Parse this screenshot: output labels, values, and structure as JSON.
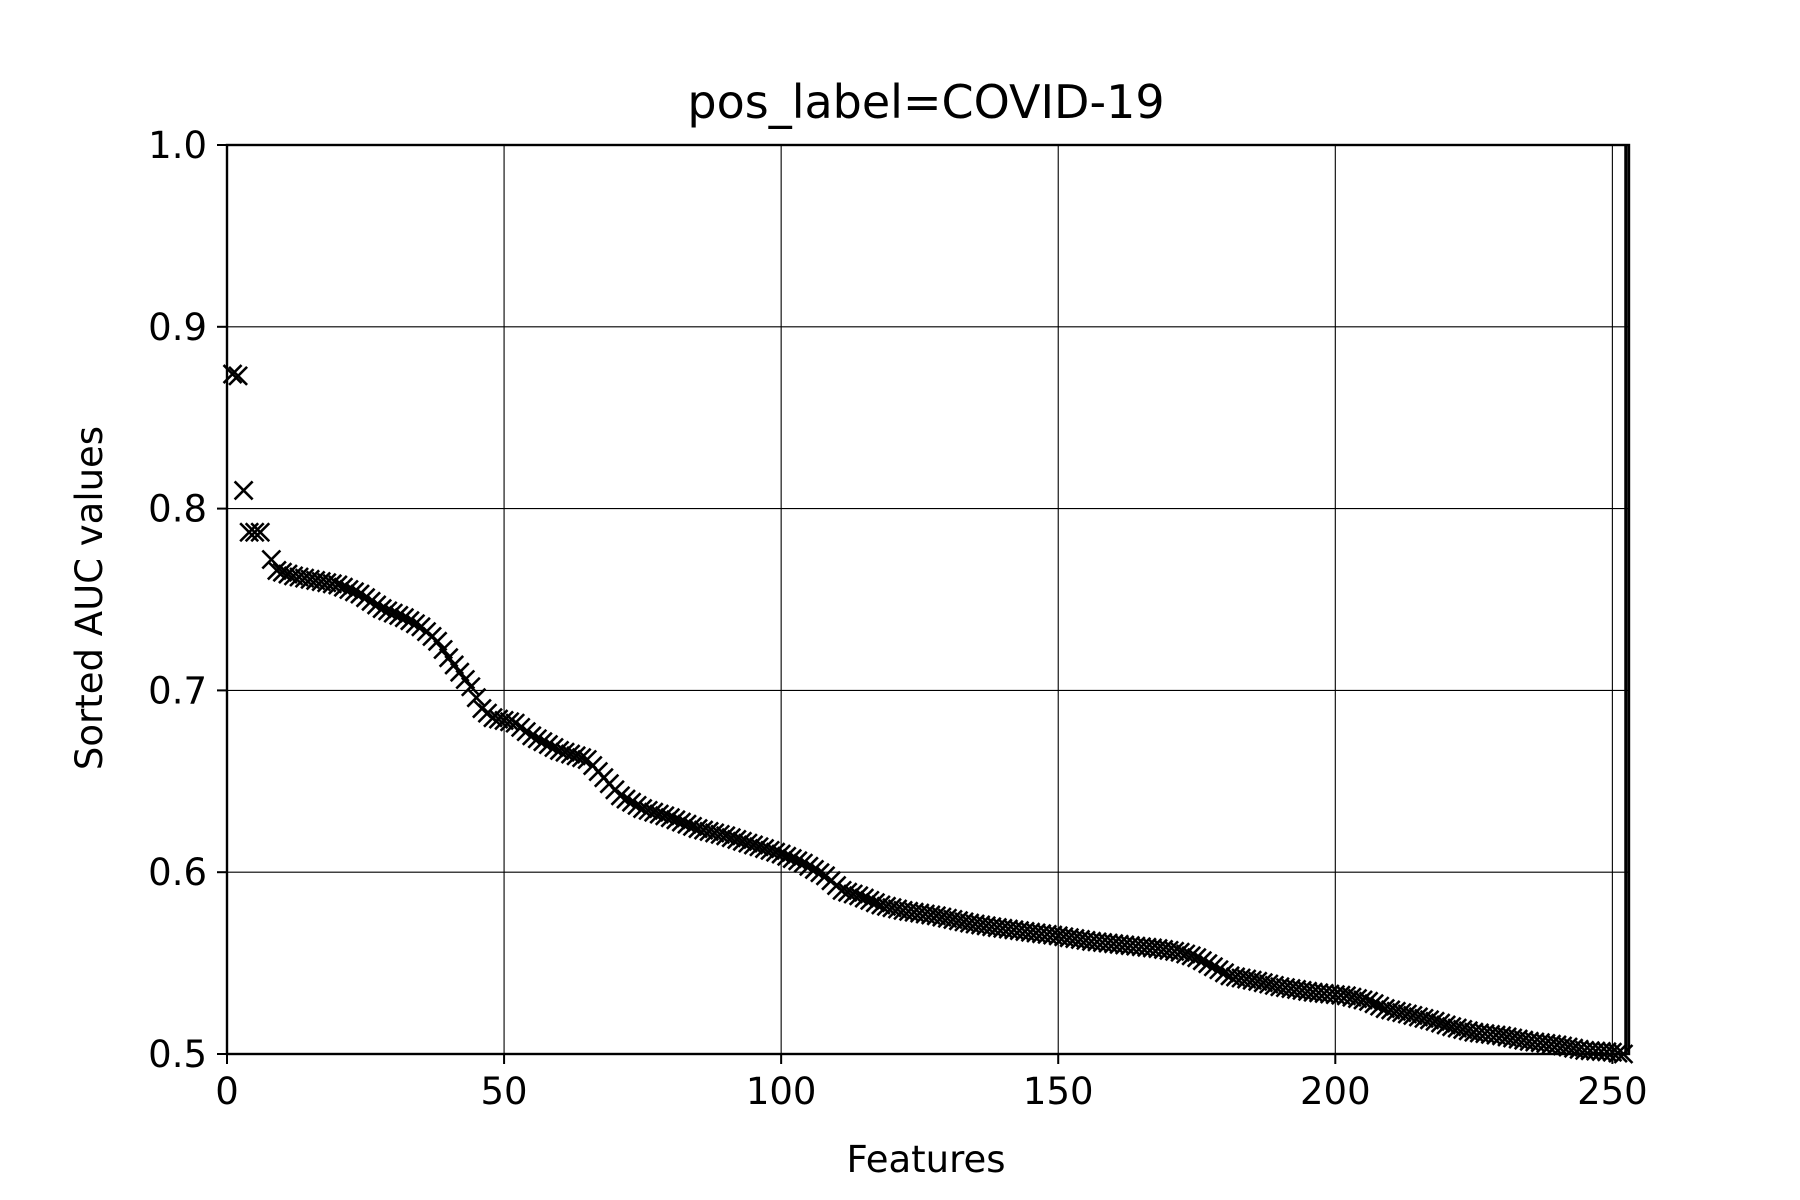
{
  "chart_data": {
    "type": "scatter",
    "title": "pos_label=COVID-19",
    "xlabel": "Features",
    "ylabel": "Sorted AUC values",
    "xlim": [
      0,
      253
    ],
    "ylim": [
      0.5,
      1.0
    ],
    "xticks": [
      0,
      50,
      100,
      150,
      200,
      250
    ],
    "yticks": [
      0.5,
      0.6,
      0.7,
      0.8,
      0.9,
      1.0
    ],
    "grid": true,
    "marker": "x",
    "color": "#000000",
    "vertical_line_x": 250,
    "y_profile": [
      [
        1,
        0.874
      ],
      [
        2,
        0.873
      ],
      [
        3,
        0.81
      ],
      [
        4,
        0.787
      ],
      [
        5,
        0.787
      ],
      [
        6,
        0.787
      ],
      [
        8,
        0.772
      ],
      [
        9,
        0.766
      ],
      [
        12,
        0.763
      ],
      [
        20,
        0.758
      ],
      [
        24,
        0.753
      ],
      [
        28,
        0.745
      ],
      [
        32,
        0.74
      ],
      [
        35,
        0.735
      ],
      [
        38,
        0.727
      ],
      [
        40,
        0.718
      ],
      [
        42,
        0.71
      ],
      [
        44,
        0.702
      ],
      [
        46,
        0.69
      ],
      [
        48,
        0.685
      ],
      [
        52,
        0.682
      ],
      [
        55,
        0.675
      ],
      [
        60,
        0.667
      ],
      [
        65,
        0.662
      ],
      [
        68,
        0.652
      ],
      [
        71,
        0.642
      ],
      [
        75,
        0.635
      ],
      [
        80,
        0.63
      ],
      [
        85,
        0.624
      ],
      [
        90,
        0.62
      ],
      [
        95,
        0.615
      ],
      [
        100,
        0.61
      ],
      [
        104,
        0.605
      ],
      [
        108,
        0.598
      ],
      [
        111,
        0.59
      ],
      [
        114,
        0.587
      ],
      [
        118,
        0.582
      ],
      [
        122,
        0.579
      ],
      [
        128,
        0.576
      ],
      [
        134,
        0.572
      ],
      [
        138,
        0.57
      ],
      [
        145,
        0.567
      ],
      [
        150,
        0.565
      ],
      [
        156,
        0.562
      ],
      [
        162,
        0.56
      ],
      [
        168,
        0.558
      ],
      [
        172,
        0.556
      ],
      [
        175,
        0.553
      ],
      [
        178,
        0.548
      ],
      [
        181,
        0.543
      ],
      [
        186,
        0.54
      ],
      [
        190,
        0.537
      ],
      [
        196,
        0.534
      ],
      [
        202,
        0.532
      ],
      [
        206,
        0.529
      ],
      [
        209,
        0.525
      ],
      [
        213,
        0.522
      ],
      [
        218,
        0.518
      ],
      [
        221,
        0.515
      ],
      [
        225,
        0.512
      ],
      [
        230,
        0.51
      ],
      [
        235,
        0.507
      ],
      [
        240,
        0.505
      ],
      [
        245,
        0.502
      ],
      [
        250,
        0.501
      ],
      [
        252,
        0.5
      ]
    ]
  }
}
